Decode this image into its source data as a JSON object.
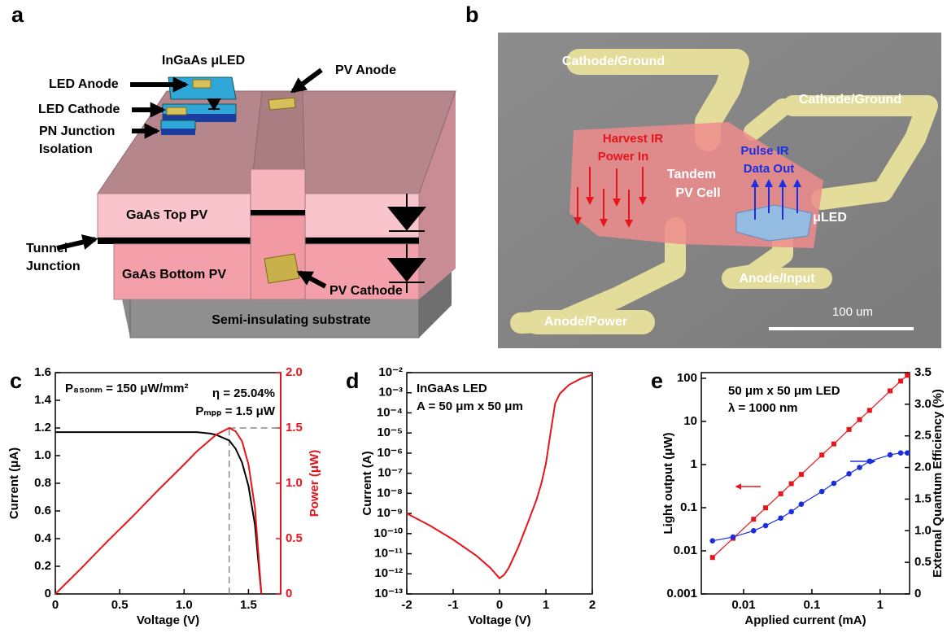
{
  "diagram": {
    "label": "a",
    "led_title": "InGaAs μLED",
    "led_anode": "LED Anode",
    "led_cathode": "LED Cathode",
    "isolation": [
      "PN Junction",
      "Isolation"
    ],
    "pv_anode": "PV Anode",
    "top_pv": "GaAs Top PV",
    "tunnel": [
      "Tunnel",
      "Junction"
    ],
    "bottom_pv": "GaAs Bottom PV",
    "pv_cathode": "PV Cathode",
    "substrate": "Semi-insulating substrate"
  },
  "micrograph": {
    "label": "b",
    "cathode_1": "Cathode/Ground",
    "cathode_2": "Cathode/Ground",
    "harvest": [
      "Harvest IR",
      "Power In"
    ],
    "tandem": [
      "Tandem",
      "PV Cell"
    ],
    "pulse": [
      "Pulse IR",
      "Data Out"
    ],
    "uled": "μLED",
    "anode_input": "Anode/Input",
    "anode_power": "Anode/Power",
    "scale_bar": "100 um"
  },
  "chart_data": [
    {
      "type": "line",
      "label": "c",
      "annotations": [
        "P₈₅₀ₙₘ = 150 μW/mm²",
        "η = 25.04%",
        "Pₘₚₚ = 1.5 μW"
      ],
      "xlabel": "Voltage (V)",
      "ylabel": "Current (μA)",
      "y2label": "Power (μW)",
      "y2color": "#e8141b",
      "xlim": [
        0,
        1.75
      ],
      "xticks": [
        0,
        0.5,
        {
          "value": 1,
          "label": "1.0"
        },
        1.5
      ],
      "ylim": [
        0,
        1.6
      ],
      "yticks": [
        0,
        0.2,
        0.4,
        0.6,
        0.8,
        {
          "value": 1,
          "label": "1.0"
        },
        1.2,
        1.4,
        1.6
      ],
      "y2lim": [
        0,
        2
      ],
      "y2ticks": [
        0,
        0.5,
        {
          "value": 1,
          "label": "1.0"
        },
        1.5,
        {
          "value": 2,
          "label": "2.0"
        }
      ],
      "x": [
        0,
        0.2,
        0.4,
        0.6,
        0.8,
        1.0,
        1.1,
        1.2,
        1.25,
        1.3,
        1.35,
        1.4,
        1.45,
        1.5,
        1.55,
        1.6
      ],
      "series": [
        {
          "color": "#000000",
          "values": [
            1.17,
            1.17,
            1.17,
            1.17,
            1.17,
            1.17,
            1.17,
            1.16,
            1.15,
            1.13,
            1.11,
            1.05,
            0.95,
            0.78,
            0.5,
            0
          ]
        },
        {
          "color": "#e8141b",
          "axis": "y2",
          "values": [
            0,
            0.23,
            0.47,
            0.7,
            0.94,
            1.17,
            1.29,
            1.39,
            1.44,
            1.47,
            1.5,
            1.47,
            1.38,
            1.17,
            0.78,
            0
          ]
        }
      ],
      "guide": {
        "x": 1.35,
        "y2": 1.5
      }
    },
    {
      "type": "line",
      "label": "d",
      "annotations": [
        "InGaAs LED",
        "A = 50 μm x 50 μm"
      ],
      "xlabel": "Voltage (V)",
      "ylabel": "Current (A)",
      "yscale": "log",
      "xlim": [
        -2,
        2
      ],
      "xticks": [
        -2,
        -1,
        0,
        1,
        2
      ],
      "ylim": [
        1e-13,
        0.01
      ],
      "yticks": [
        {
          "value": 1e-13,
          "label": "10⁻¹³"
        },
        {
          "value": 1e-12,
          "label": "10⁻¹²"
        },
        {
          "value": 1e-11,
          "label": "10⁻¹¹"
        },
        {
          "value": 1e-10,
          "label": "10⁻¹⁰"
        },
        {
          "value": 1e-09,
          "label": "10⁻⁹"
        },
        {
          "value": 1e-08,
          "label": "10⁻⁸"
        },
        {
          "value": 1e-07,
          "label": "10⁻⁷"
        },
        {
          "value": 1e-06,
          "label": "10⁻⁶"
        },
        {
          "value": 1e-05,
          "label": "10⁻⁵"
        },
        {
          "value": 0.0001,
          "label": "10⁻⁴"
        },
        {
          "value": 0.001,
          "label": "10⁻³"
        },
        {
          "value": 0.01,
          "label": "10⁻²"
        }
      ],
      "x": [
        -2,
        -1.5,
        -1,
        -0.5,
        -0.2,
        0,
        0.1,
        0.2,
        0.4,
        0.6,
        0.8,
        0.9,
        1.0,
        1.1,
        1.2,
        1.3,
        1.5,
        1.75,
        2
      ],
      "series": [
        {
          "color": "#e8141b",
          "values": [
            1e-09,
            2.5e-10,
            5e-11,
            8e-12,
            2e-12,
            6e-13,
            9e-13,
            2e-12,
            2e-11,
            3e-10,
            5e-09,
            3e-08,
            3e-07,
            1e-05,
            0.0003,
            0.0009,
            0.0025,
            0.005,
            0.008
          ]
        }
      ]
    },
    {
      "type": "line",
      "label": "e",
      "annotations": [
        "50 μm x 50 μm LED",
        "λ = 1000 nm"
      ],
      "xlabel": "Applied current (mA)",
      "ylabel": "Light output (μW)",
      "y2label": "External Quantum Efficiency (%)",
      "xscale": "log",
      "yscale": "log",
      "markers": true,
      "xlim": [
        0.0024,
        2.7
      ],
      "xticks": [
        0.01,
        0.1,
        1
      ],
      "ylim": [
        0.001,
        135
      ],
      "yticks": [
        0.001,
        0.01,
        0.1,
        1,
        10,
        100
      ],
      "y2lim": [
        0,
        3.5
      ],
      "y2ticks": [
        0,
        0.5,
        {
          "value": 1,
          "label": "1.0"
        },
        1.5,
        {
          "value": 2,
          "label": "2.0"
        },
        2.5,
        {
          "value": 3,
          "label": "3.0"
        },
        3.5
      ],
      "x": [
        0.0035,
        0.007,
        0.014,
        0.021,
        0.035,
        0.05,
        0.07,
        0.14,
        0.21,
        0.35,
        0.5,
        0.7,
        1.4,
        2,
        2.5
      ],
      "series": [
        {
          "color": "#e8141b",
          "marker": "square",
          "values": [
            0.007,
            0.0195,
            0.054,
            0.099,
            0.21,
            0.36,
            0.59,
            1.66,
            3.0,
            6.5,
            11,
            18,
            51,
            86,
            117
          ]
        },
        {
          "color": "#1a2ee0",
          "marker": "circle",
          "axis": "y2",
          "values": [
            0.84,
            0.9,
            1.0,
            1.08,
            1.2,
            1.3,
            1.42,
            1.62,
            1.75,
            1.9,
            2.0,
            2.1,
            2.2,
            2.23,
            2.23
          ]
        }
      ]
    }
  ]
}
